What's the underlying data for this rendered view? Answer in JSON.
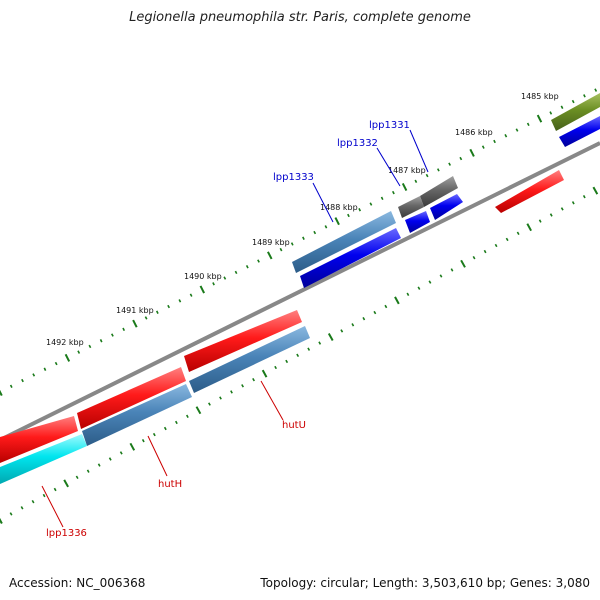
{
  "title": "Legionella pneumophila str. Paris, complete genome",
  "footer": {
    "accession": "Accession: NC_006368",
    "summary": "Topology: circular; Length: 3,503,610 bp; Genes: 3,080"
  },
  "ticks": [
    "1485 kbp",
    "1486 kbp",
    "1487 kbp",
    "1488 kbp",
    "1489 kbp",
    "1490 kbp",
    "1491 kbp",
    "1492 kbp"
  ],
  "gene_labels": {
    "lpp1331": "lpp1331",
    "lpp1332": "lpp1332",
    "lpp1333": "lpp1333",
    "hutU": "hutU",
    "hutH": "hutH",
    "lpp1336": "lpp1336"
  },
  "colors": {
    "forward_label": "#0000cc",
    "reverse_label": "#cc0000",
    "backbone": "#888888",
    "tick": "#1a7a1a",
    "red_feature": "#ff1a1a",
    "blue_feature": "#0000ee",
    "steel_feature": "#4a84b8",
    "gray_feature": "#666666",
    "olive_feature": "#6b8e23",
    "cyan_feature": "#00e5ee"
  }
}
